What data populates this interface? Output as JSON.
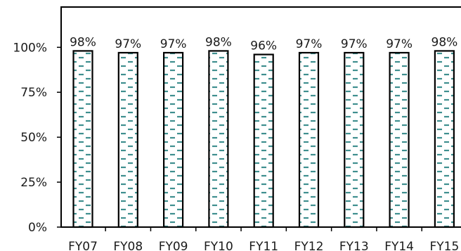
{
  "chart_data": {
    "type": "bar",
    "categories": [
      "FY07",
      "FY08",
      "FY09",
      "FY10",
      "FY11",
      "FY12",
      "FY13",
      "FY14",
      "FY15"
    ],
    "values": [
      98,
      97,
      97,
      98,
      96,
      97,
      97,
      97,
      98
    ],
    "data_labels": [
      "98%",
      "97%",
      "97%",
      "98%",
      "96%",
      "97%",
      "97%",
      "97%",
      "98%"
    ],
    "y_ticks": [
      {
        "value": 0,
        "label": "0%"
      },
      {
        "value": 25,
        "label": "25%"
      },
      {
        "value": 50,
        "label": "50%"
      },
      {
        "value": 75,
        "label": "75%"
      },
      {
        "value": 100,
        "label": "100%"
      }
    ],
    "ylim": [
      0,
      124
    ],
    "grid": false,
    "legend": "none",
    "title": "",
    "xlabel": "",
    "ylabel": "",
    "colors": {
      "bar_fill": "#ffffff",
      "bar_stroke": "#000000",
      "pattern_dash": "#3f8f8f",
      "axis": "#000000"
    }
  }
}
